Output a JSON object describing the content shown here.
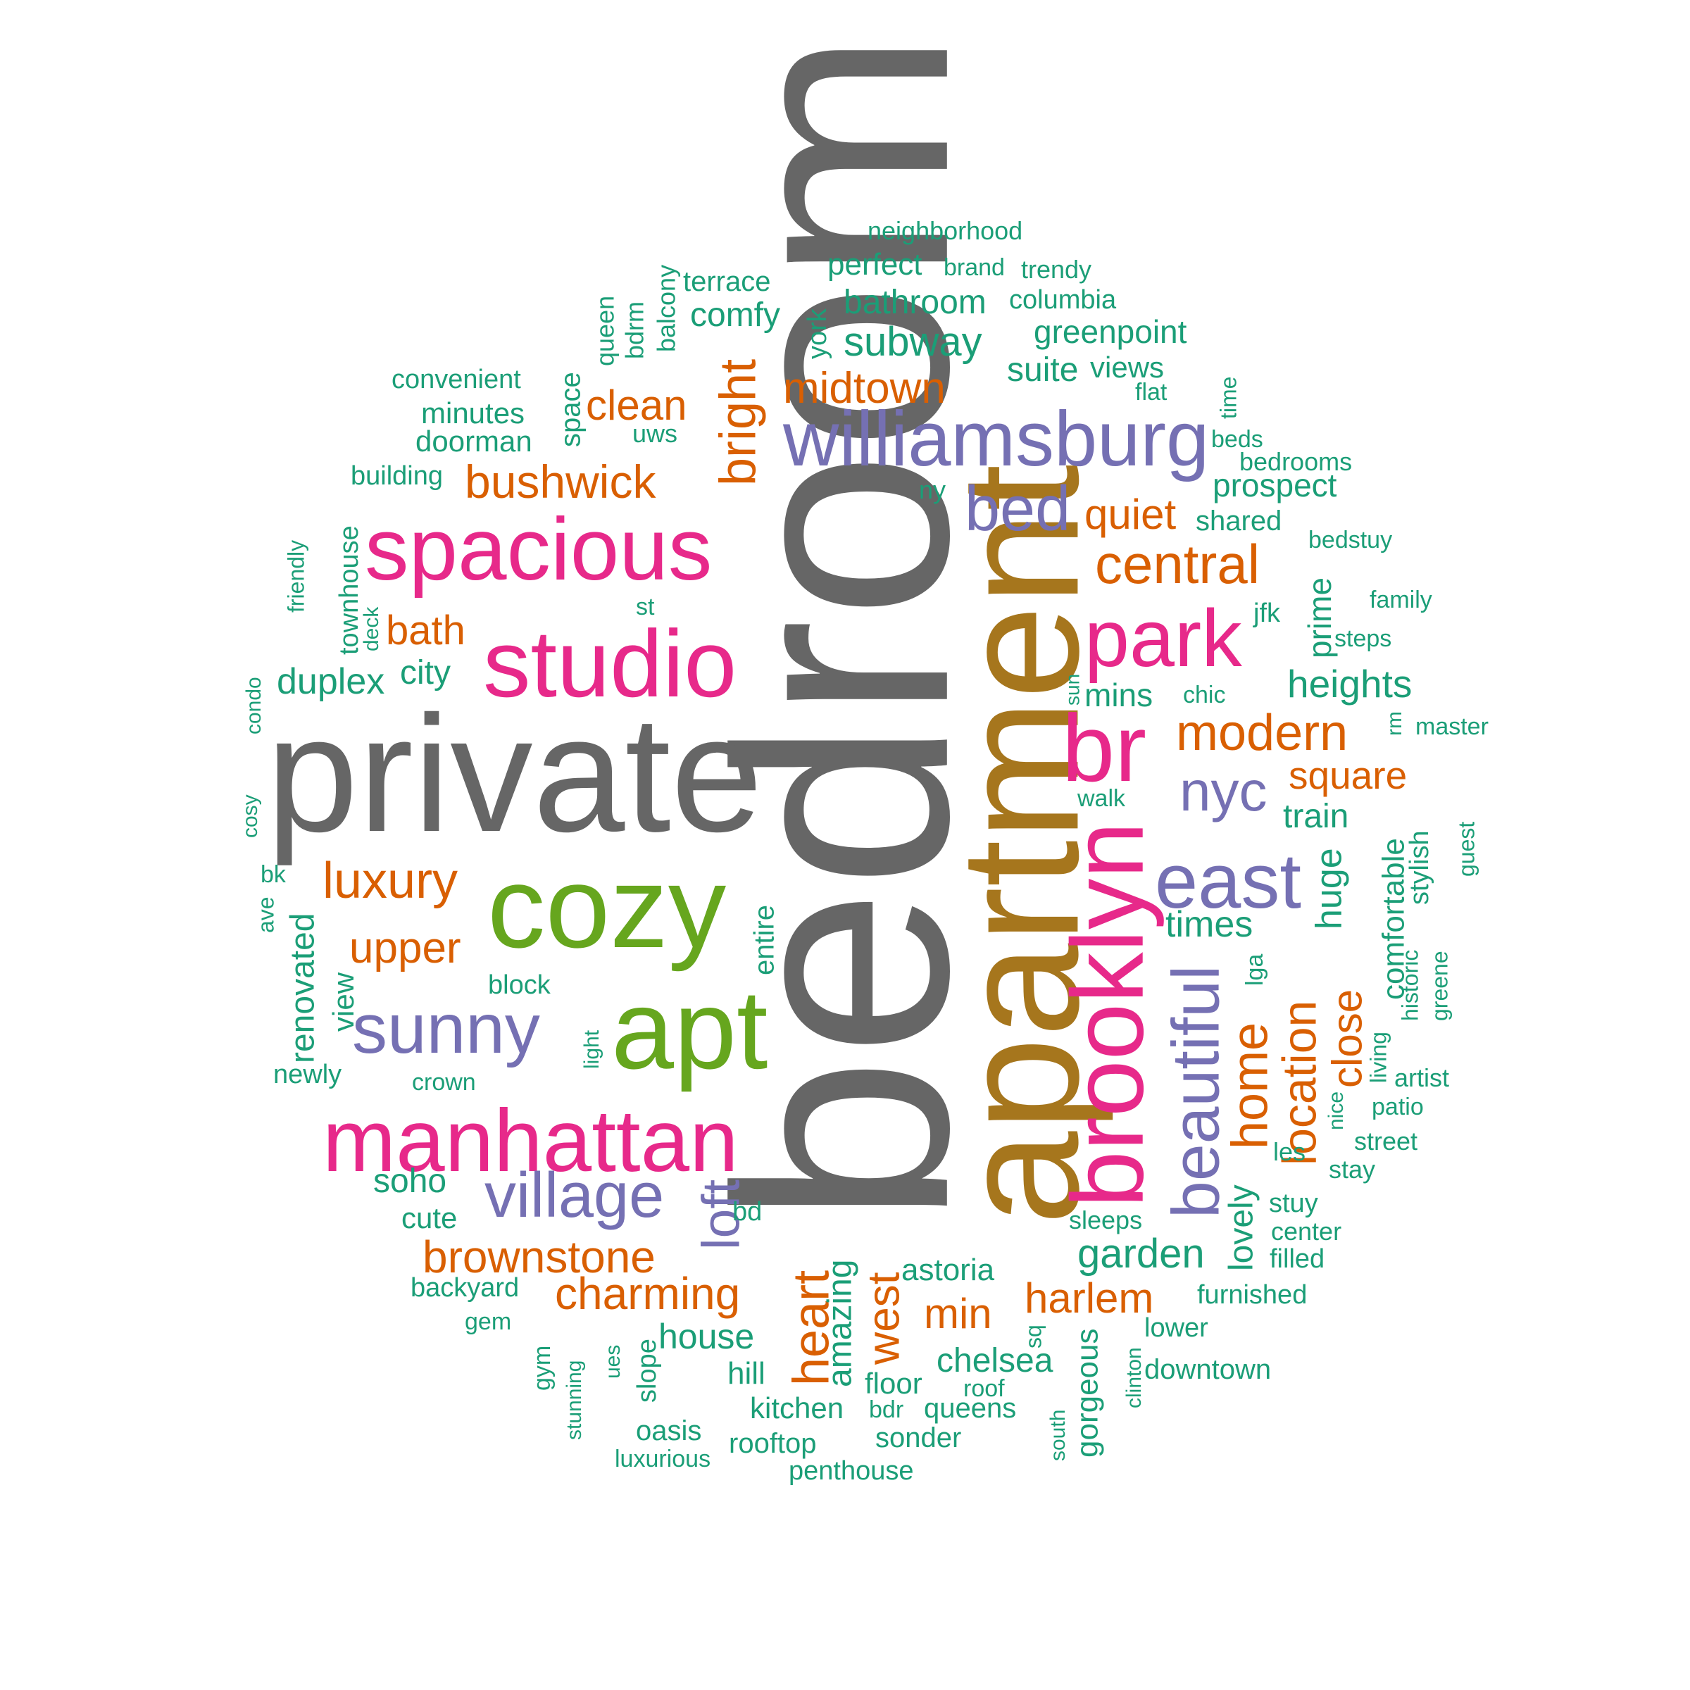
{
  "word_cloud": {
    "colors": {
      "gray": "#666666",
      "brown": "#a6761d",
      "pink": "#e7298a",
      "purple": "#7570b3",
      "orange": "#d95f02",
      "lime": "#66a61e",
      "teal": "#1b9e77"
    },
    "words": [
      {
        "text": "bedroom",
        "color": "gray"
      },
      {
        "text": "private",
        "color": "gray"
      },
      {
        "text": "apartment",
        "color": "brown"
      },
      {
        "text": "brooklyn",
        "color": "pink"
      },
      {
        "text": "cozy",
        "color": "lime"
      },
      {
        "text": "apt",
        "color": "lime"
      },
      {
        "text": "studio",
        "color": "pink"
      },
      {
        "text": "spacious",
        "color": "pink"
      },
      {
        "text": "manhattan",
        "color": "pink"
      },
      {
        "text": "williamsburg",
        "color": "purple"
      },
      {
        "text": "br",
        "color": "pink"
      },
      {
        "text": "park",
        "color": "pink"
      },
      {
        "text": "east",
        "color": "purple"
      },
      {
        "text": "sunny",
        "color": "purple"
      },
      {
        "text": "beautiful",
        "color": "purple"
      },
      {
        "text": "village",
        "color": "purple"
      },
      {
        "text": "bed",
        "color": "purple"
      },
      {
        "text": "nyc",
        "color": "purple"
      },
      {
        "text": "loft",
        "color": "purple"
      },
      {
        "text": "central",
        "color": "orange"
      },
      {
        "text": "home",
        "color": "orange"
      },
      {
        "text": "heart",
        "color": "orange"
      },
      {
        "text": "luxury",
        "color": "orange"
      },
      {
        "text": "modern",
        "color": "orange"
      },
      {
        "text": "location",
        "color": "orange"
      },
      {
        "text": "bright",
        "color": "orange"
      },
      {
        "text": "bushwick",
        "color": "orange"
      },
      {
        "text": "charming",
        "color": "orange"
      },
      {
        "text": "brownstone",
        "color": "orange"
      },
      {
        "text": "west",
        "color": "orange"
      },
      {
        "text": "midtown",
        "color": "orange"
      },
      {
        "text": "quiet",
        "color": "orange"
      },
      {
        "text": "upper",
        "color": "orange"
      },
      {
        "text": "harlem",
        "color": "orange"
      },
      {
        "text": "clean",
        "color": "orange"
      },
      {
        "text": "close",
        "color": "orange"
      },
      {
        "text": "square",
        "color": "orange"
      },
      {
        "text": "min",
        "color": "orange"
      },
      {
        "text": "bath",
        "color": "orange"
      },
      {
        "text": "subway",
        "color": "teal"
      },
      {
        "text": "garden",
        "color": "teal"
      },
      {
        "text": "heights",
        "color": "teal"
      },
      {
        "text": "times",
        "color": "teal"
      },
      {
        "text": "huge",
        "color": "teal"
      },
      {
        "text": "duplex",
        "color": "teal"
      },
      {
        "text": "renovated",
        "color": "teal"
      },
      {
        "text": "house",
        "color": "teal"
      },
      {
        "text": "chelsea",
        "color": "teal"
      },
      {
        "text": "lovely",
        "color": "teal"
      },
      {
        "text": "amazing",
        "color": "teal"
      },
      {
        "text": "comfortable",
        "color": "teal"
      },
      {
        "text": "bathroom",
        "color": "teal"
      },
      {
        "text": "prospect",
        "color": "teal"
      },
      {
        "text": "greenpoint",
        "color": "teal"
      },
      {
        "text": "train",
        "color": "teal"
      },
      {
        "text": "gorgeous",
        "color": "teal"
      },
      {
        "text": "soho",
        "color": "teal"
      },
      {
        "text": "prime",
        "color": "teal"
      },
      {
        "text": "comfy",
        "color": "teal"
      },
      {
        "text": "perfect",
        "color": "teal"
      },
      {
        "text": "suite",
        "color": "teal"
      },
      {
        "text": "mins",
        "color": "teal"
      },
      {
        "text": "city",
        "color": "teal"
      },
      {
        "text": "entire",
        "color": "teal"
      },
      {
        "text": "kitchen",
        "color": "teal"
      },
      {
        "text": "floor",
        "color": "teal"
      },
      {
        "text": "astoria",
        "color": "teal"
      },
      {
        "text": "views",
        "color": "teal"
      },
      {
        "text": "minutes",
        "color": "teal"
      },
      {
        "text": "doorman",
        "color": "teal"
      },
      {
        "text": "cute",
        "color": "teal"
      },
      {
        "text": "space",
        "color": "teal"
      },
      {
        "text": "townhouse",
        "color": "teal"
      },
      {
        "text": "stylish",
        "color": "teal"
      },
      {
        "text": "view",
        "color": "teal"
      },
      {
        "text": "terrace",
        "color": "teal"
      },
      {
        "text": "queens",
        "color": "teal"
      },
      {
        "text": "slope",
        "color": "teal"
      },
      {
        "text": "hill",
        "color": "teal"
      },
      {
        "text": "oasis",
        "color": "teal"
      },
      {
        "text": "rooftop",
        "color": "teal"
      },
      {
        "text": "sonder",
        "color": "teal"
      },
      {
        "text": "penthouse",
        "color": "teal"
      },
      {
        "text": "downtown",
        "color": "teal"
      },
      {
        "text": "columbia",
        "color": "teal"
      },
      {
        "text": "york",
        "color": "teal"
      },
      {
        "text": "shared",
        "color": "teal"
      },
      {
        "text": "bedrooms",
        "color": "teal"
      },
      {
        "text": "convenient",
        "color": "teal"
      },
      {
        "text": "building",
        "color": "teal"
      },
      {
        "text": "block",
        "color": "teal"
      },
      {
        "text": "backyard",
        "color": "teal"
      },
      {
        "text": "furnished",
        "color": "teal"
      },
      {
        "text": "lower",
        "color": "teal"
      },
      {
        "text": "neighborhood",
        "color": "teal"
      },
      {
        "text": "brand",
        "color": "teal"
      },
      {
        "text": "trendy",
        "color": "teal"
      },
      {
        "text": "balcony",
        "color": "teal"
      },
      {
        "text": "queen",
        "color": "teal"
      },
      {
        "text": "bdrm",
        "color": "teal"
      },
      {
        "text": "uws",
        "color": "teal"
      },
      {
        "text": "beds",
        "color": "teal"
      },
      {
        "text": "time",
        "color": "teal"
      },
      {
        "text": "flat",
        "color": "teal"
      },
      {
        "text": "ny",
        "color": "teal"
      },
      {
        "text": "bedstuy",
        "color": "teal"
      },
      {
        "text": "family",
        "color": "teal"
      },
      {
        "text": "steps",
        "color": "teal"
      },
      {
        "text": "jfk",
        "color": "teal"
      },
      {
        "text": "chic",
        "color": "teal"
      },
      {
        "text": "master",
        "color": "teal"
      },
      {
        "text": "rm",
        "color": "teal"
      },
      {
        "text": "walk",
        "color": "teal"
      },
      {
        "text": "guest",
        "color": "teal"
      },
      {
        "text": "historic",
        "color": "teal"
      },
      {
        "text": "greene",
        "color": "teal"
      },
      {
        "text": "lga",
        "color": "teal"
      },
      {
        "text": "living",
        "color": "teal"
      },
      {
        "text": "artist",
        "color": "teal"
      },
      {
        "text": "patio",
        "color": "teal"
      },
      {
        "text": "street",
        "color": "teal"
      },
      {
        "text": "stay",
        "color": "teal"
      },
      {
        "text": "nice",
        "color": "teal"
      },
      {
        "text": "les",
        "color": "teal"
      },
      {
        "text": "stuy",
        "color": "teal"
      },
      {
        "text": "center",
        "color": "teal"
      },
      {
        "text": "filled",
        "color": "teal"
      },
      {
        "text": "sleeps",
        "color": "teal"
      },
      {
        "text": "clinton",
        "color": "teal"
      },
      {
        "text": "south",
        "color": "teal"
      },
      {
        "text": "sq",
        "color": "teal"
      },
      {
        "text": "roof",
        "color": "teal"
      },
      {
        "text": "bdr",
        "color": "teal"
      },
      {
        "text": "luxurious",
        "color": "teal"
      },
      {
        "text": "stunning",
        "color": "teal"
      },
      {
        "text": "gym",
        "color": "teal"
      },
      {
        "text": "ues",
        "color": "teal"
      },
      {
        "text": "gem",
        "color": "teal"
      },
      {
        "text": "bd",
        "color": "teal"
      },
      {
        "text": "light",
        "color": "teal"
      },
      {
        "text": "crown",
        "color": "teal"
      },
      {
        "text": "newly",
        "color": "teal"
      },
      {
        "text": "ave",
        "color": "teal"
      },
      {
        "text": "bk",
        "color": "teal"
      },
      {
        "text": "cosy",
        "color": "teal"
      },
      {
        "text": "condo",
        "color": "teal"
      },
      {
        "text": "friendly",
        "color": "teal"
      },
      {
        "text": "deck",
        "color": "teal"
      },
      {
        "text": "st",
        "color": "teal"
      },
      {
        "text": "sun",
        "color": "teal"
      }
    ]
  }
}
